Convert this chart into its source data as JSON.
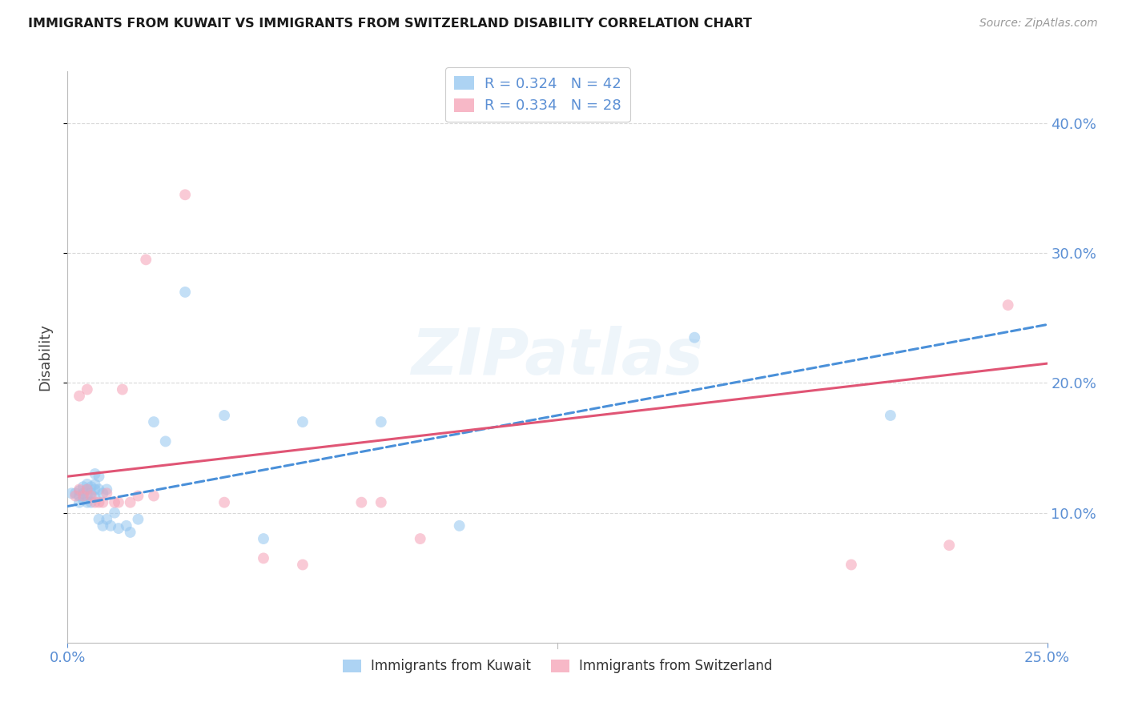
{
  "title": "IMMIGRANTS FROM KUWAIT VS IMMIGRANTS FROM SWITZERLAND DISABILITY CORRELATION CHART",
  "source": "Source: ZipAtlas.com",
  "ylabel": "Disability",
  "right_ytick_vals": [
    0.1,
    0.2,
    0.3,
    0.4
  ],
  "right_ytick_labels": [
    "10.0%",
    "20.0%",
    "30.0%",
    "40.0%"
  ],
  "xlim": [
    0.0,
    0.25
  ],
  "ylim": [
    0.0,
    0.44
  ],
  "watermark": "ZIPatlas",
  "kuwait_color": "#92c5f0",
  "switzerland_color": "#f5a0b5",
  "kuwait_label": "Immigrants from Kuwait",
  "switzerland_label": "Immigrants from Switzerland",
  "kuwait_trend_color": "#4a90d9",
  "switzerland_trend_color": "#e05575",
  "background_color": "#ffffff",
  "grid_color": "#d8d8d8",
  "title_color": "#1a1a1a",
  "axis_color": "#5b8fd4",
  "marker_size": 100,
  "kuwait_x": [
    0.001,
    0.002,
    0.003,
    0.003,
    0.003,
    0.004,
    0.004,
    0.004,
    0.005,
    0.005,
    0.005,
    0.005,
    0.006,
    0.006,
    0.006,
    0.007,
    0.007,
    0.007,
    0.007,
    0.008,
    0.008,
    0.008,
    0.009,
    0.009,
    0.01,
    0.01,
    0.011,
    0.012,
    0.013,
    0.015,
    0.016,
    0.018,
    0.022,
    0.025,
    0.03,
    0.04,
    0.05,
    0.06,
    0.08,
    0.1,
    0.16,
    0.21
  ],
  "kuwait_y": [
    0.115,
    0.115,
    0.117,
    0.113,
    0.108,
    0.12,
    0.115,
    0.11,
    0.122,
    0.118,
    0.113,
    0.108,
    0.12,
    0.115,
    0.108,
    0.13,
    0.122,
    0.118,
    0.112,
    0.128,
    0.118,
    0.095,
    0.115,
    0.09,
    0.118,
    0.095,
    0.09,
    0.1,
    0.088,
    0.09,
    0.085,
    0.095,
    0.17,
    0.155,
    0.27,
    0.175,
    0.08,
    0.17,
    0.17,
    0.09,
    0.235,
    0.175
  ],
  "switzerland_x": [
    0.002,
    0.003,
    0.003,
    0.004,
    0.005,
    0.005,
    0.006,
    0.007,
    0.008,
    0.009,
    0.01,
    0.012,
    0.013,
    0.014,
    0.016,
    0.018,
    0.02,
    0.022,
    0.03,
    0.04,
    0.05,
    0.06,
    0.075,
    0.08,
    0.09,
    0.2,
    0.225,
    0.24
  ],
  "switzerland_y": [
    0.113,
    0.19,
    0.118,
    0.113,
    0.195,
    0.118,
    0.113,
    0.108,
    0.108,
    0.108,
    0.115,
    0.108,
    0.108,
    0.195,
    0.108,
    0.113,
    0.295,
    0.113,
    0.345,
    0.108,
    0.065,
    0.06,
    0.108,
    0.108,
    0.08,
    0.06,
    0.075,
    0.26
  ],
  "kuwait_trend_x": [
    0.0,
    0.25
  ],
  "kuwait_trend_y": [
    0.105,
    0.245
  ],
  "switzerland_trend_x": [
    0.0,
    0.25
  ],
  "switzerland_trend_y": [
    0.128,
    0.215
  ]
}
